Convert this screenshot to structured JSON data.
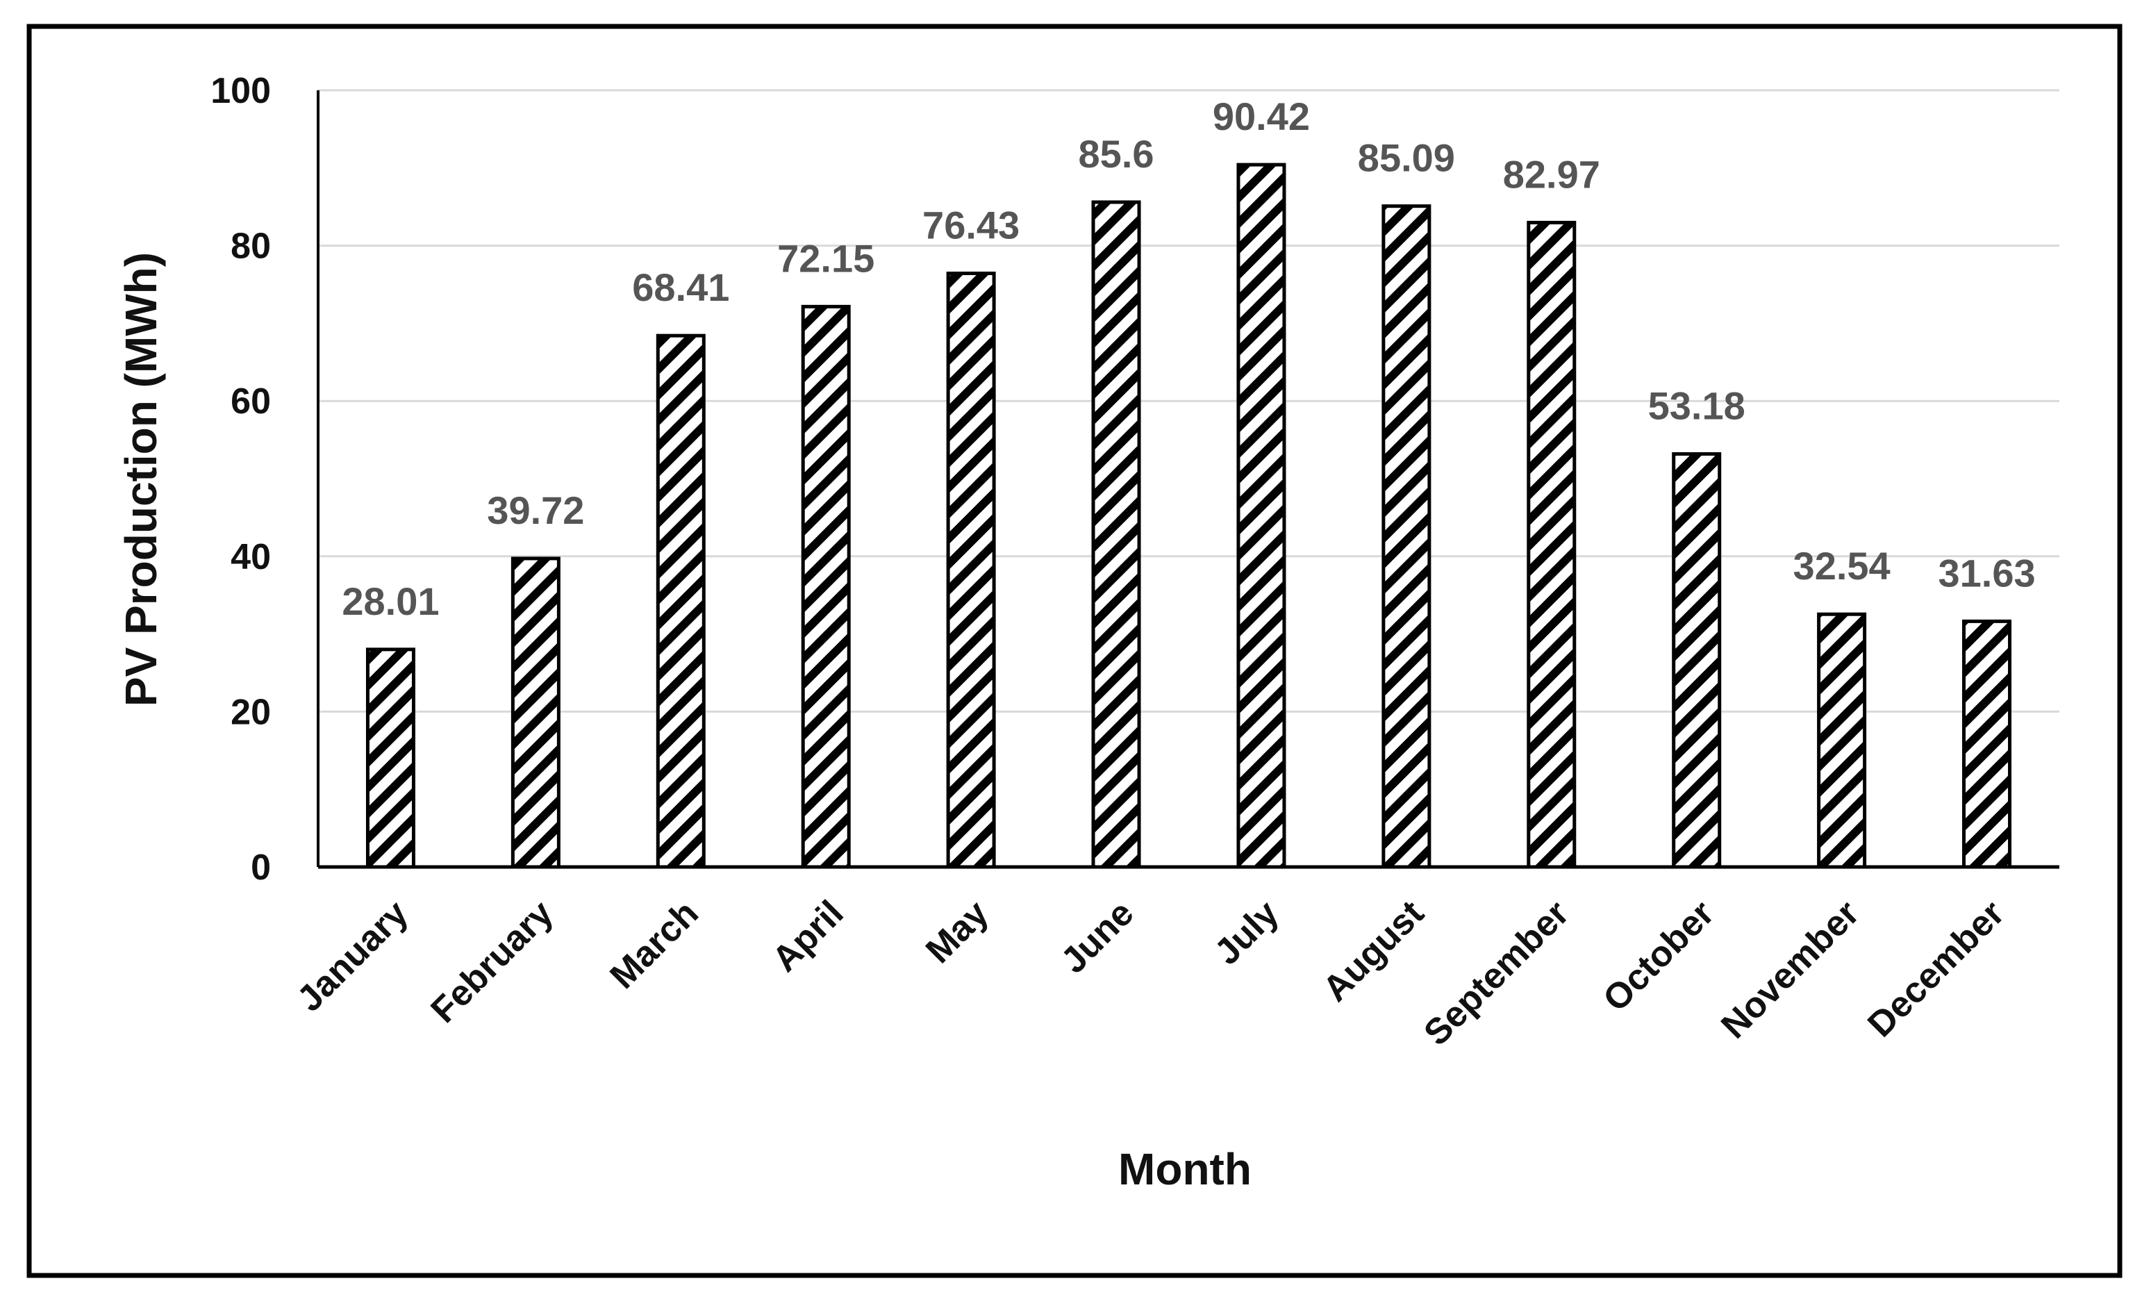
{
  "chart_data": {
    "type": "bar",
    "title": "",
    "xlabel": "Month",
    "ylabel": "PV Production (MWh)",
    "ylim": [
      0,
      100
    ],
    "yticks": [
      "0",
      "20",
      "40",
      "60",
      "80",
      "100"
    ],
    "grid": true,
    "legend": "none",
    "bar_fill": "diagonal-hatch",
    "colors": {
      "bar_stroke": "#000000",
      "grid": "#d9d9d9",
      "data_label": "#555555",
      "frame": "#000000"
    },
    "categories": [
      "January",
      "February",
      "March",
      "April",
      "May",
      "June",
      "July",
      "August",
      "September",
      "October",
      "November",
      "December"
    ],
    "values": [
      28.01,
      39.72,
      68.41,
      72.15,
      76.43,
      85.6,
      90.42,
      85.09,
      82.97,
      53.18,
      32.54,
      31.63
    ],
    "value_labels": [
      "28.01",
      "39.72",
      "68.41",
      "72.15",
      "76.43",
      "85.6",
      "90.42",
      "85.09",
      "82.97",
      "53.18",
      "32.54",
      "31.63"
    ]
  }
}
